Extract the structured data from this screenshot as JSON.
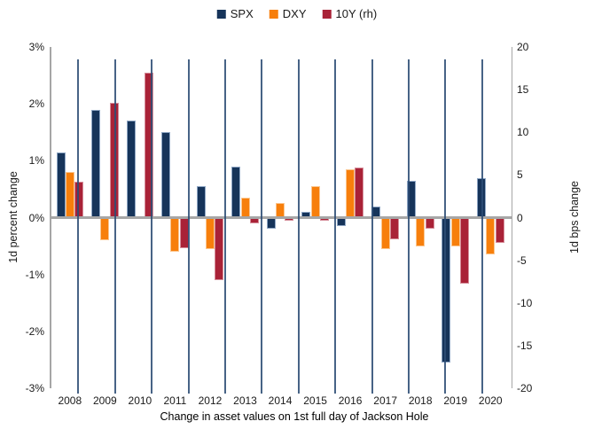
{
  "legend": {
    "items": [
      {
        "label": "SPX",
        "color": "#16345a"
      },
      {
        "label": "DXY",
        "color": "#f77f0c"
      },
      {
        "label": "10Y (rh)",
        "color": "#a92237"
      }
    ]
  },
  "axes": {
    "left": {
      "title": "1d percent change",
      "ticks": [
        "3%",
        "2%",
        "1%",
        "0%",
        "-1%",
        "-2%",
        "-3%"
      ]
    },
    "right": {
      "title": "1d bps change",
      "ticks": [
        "20",
        "15",
        "10",
        "5",
        "0",
        "-5",
        "-10",
        "-15",
        "-20"
      ]
    },
    "x": {
      "title": "Change in asset values on 1st full day of Jackson Hole"
    }
  },
  "chart_data": {
    "type": "bar",
    "title": "Change in asset values on 1st full day of Jackson Hole",
    "categories": [
      "2008",
      "2009",
      "2010",
      "2011",
      "2012",
      "2013",
      "2014",
      "2015",
      "2016",
      "2017",
      "2018",
      "2019",
      "2020"
    ],
    "series": [
      {
        "name": "SPX",
        "axis": "left",
        "unit": "%",
        "color": "#16345a",
        "values": [
          1.15,
          1.9,
          1.7,
          1.5,
          0.55,
          0.9,
          -0.2,
          0.1,
          -0.15,
          0.2,
          0.65,
          -2.55,
          0.7
        ]
      },
      {
        "name": "DXY",
        "axis": "left",
        "unit": "%",
        "color": "#f77f0c",
        "values": [
          0.8,
          -0.4,
          0.0,
          -0.6,
          -0.55,
          0.35,
          0.25,
          0.55,
          0.85,
          -0.55,
          -0.5,
          -0.5,
          -0.65
        ]
      },
      {
        "name": "10Y (rh)",
        "axis": "right",
        "unit": "bps",
        "color": "#a92237",
        "values": [
          4.2,
          13.5,
          17.0,
          -3.6,
          -7.3,
          -0.7,
          -0.4,
          -0.4,
          5.9,
          -2.5,
          -1.3,
          -7.7,
          -3.0
        ]
      }
    ],
    "left_ylim": [
      -3,
      3
    ],
    "right_ylim": [
      -20,
      20
    ],
    "legend_position": "top-center",
    "gridlines": "vertical separators between year groups",
    "zero_baseline": true
  }
}
